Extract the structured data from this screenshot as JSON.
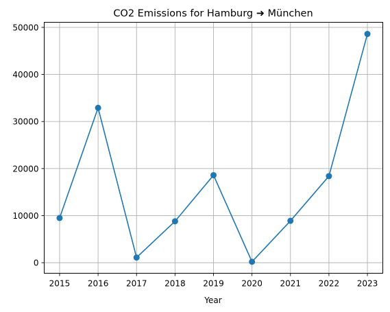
{
  "chart_data": {
    "type": "line",
    "title": "CO2 Emissions for Hamburg ➜ München",
    "xlabel": "Year",
    "ylabel": "",
    "x": [
      2015,
      2016,
      2017,
      2018,
      2019,
      2020,
      2021,
      2022,
      2023
    ],
    "x_tick_labels": [
      "2015",
      "2016",
      "2017",
      "2018",
      "2019",
      "2020",
      "2021",
      "2022",
      "2023"
    ],
    "series": [
      {
        "values": [
          9500,
          32900,
          1100,
          8800,
          18600,
          200,
          8900,
          18400,
          48600
        ],
        "color": "#1f77b4",
        "marker": "circle"
      }
    ],
    "ylim": [
      -2240,
      51080
    ],
    "xlim": [
      2014.6,
      2023.4
    ],
    "y_ticks": [
      0,
      10000,
      20000,
      30000,
      40000,
      50000
    ],
    "y_tick_labels": [
      "0",
      "10000",
      "20000",
      "30000",
      "40000",
      "50000"
    ],
    "grid": true
  }
}
